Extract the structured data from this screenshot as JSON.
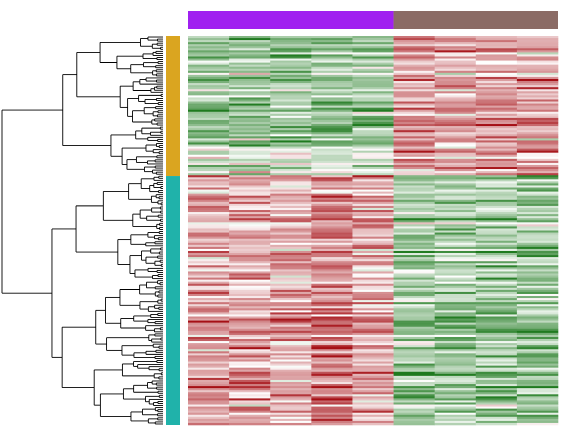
{
  "chart_data": {
    "type": "heatmap",
    "title": "",
    "xlabel": "",
    "ylabel": "",
    "row_clusters": [
      {
        "color": "#DAA520",
        "row_fraction": 0.36
      },
      {
        "color": "#20B2AA",
        "row_fraction": 0.64
      }
    ],
    "column_groups": [
      {
        "color": "#A020F0",
        "columns": 5
      },
      {
        "color": "#8B6B65",
        "columns": 4
      }
    ],
    "color_scale": {
      "low": "#1F7A1F",
      "mid": "#FFFFFF",
      "high": "#A50F15"
    },
    "n_rows": 190,
    "n_columns": 9,
    "row_dendrogram": true,
    "column_dendrogram": false,
    "legend": "none"
  }
}
